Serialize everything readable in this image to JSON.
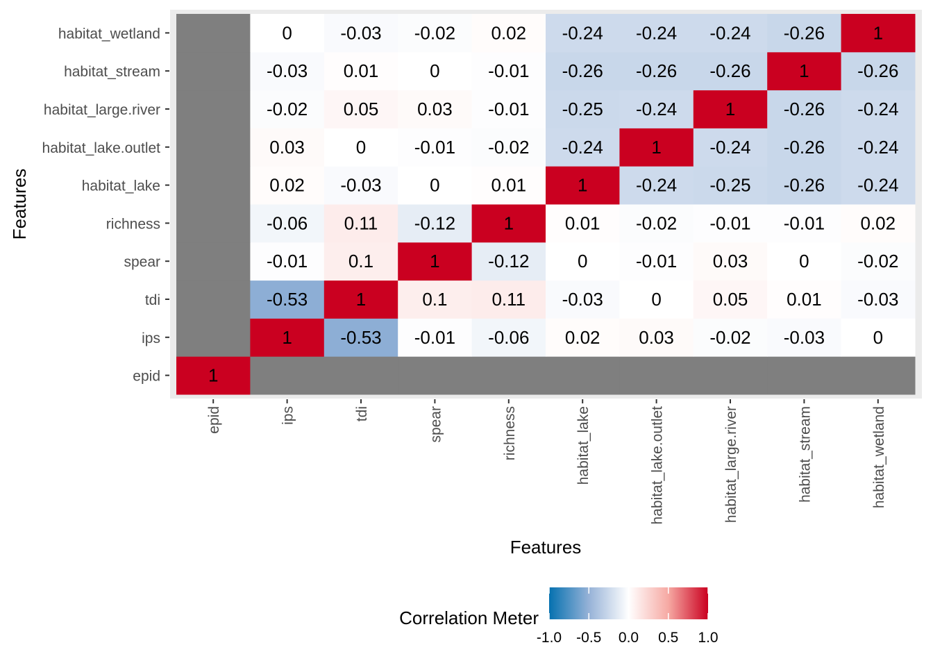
{
  "chart_data": {
    "type": "heatmap",
    "title": "",
    "xlabel": "Features",
    "ylabel": "Features",
    "x_categories": [
      "epid",
      "ips",
      "tdi",
      "spear",
      "richness",
      "habitat_lake",
      "habitat_lake.outlet",
      "habitat_large.river",
      "habitat_stream",
      "habitat_wetland"
    ],
    "y_categories": [
      "epid",
      "ips",
      "tdi",
      "spear",
      "richness",
      "habitat_lake",
      "habitat_lake.outlet",
      "habitat_large.river",
      "habitat_stream",
      "habitat_wetland"
    ],
    "values": [
      [
        1,
        null,
        null,
        null,
        null,
        null,
        null,
        null,
        null,
        null
      ],
      [
        null,
        1,
        -0.53,
        -0.01,
        -0.06,
        0.02,
        0.03,
        -0.02,
        -0.03,
        0
      ],
      [
        null,
        -0.53,
        1,
        0.1,
        0.11,
        -0.03,
        0,
        0.05,
        0.01,
        -0.03
      ],
      [
        null,
        -0.01,
        0.1,
        1,
        -0.12,
        0,
        -0.01,
        0.03,
        0,
        -0.02
      ],
      [
        null,
        -0.06,
        0.11,
        -0.12,
        1,
        0.01,
        -0.02,
        -0.01,
        -0.01,
        0.02
      ],
      [
        null,
        0.02,
        -0.03,
        0,
        0.01,
        1,
        -0.24,
        -0.25,
        -0.26,
        -0.24
      ],
      [
        null,
        0.03,
        0,
        -0.01,
        -0.02,
        -0.24,
        1,
        -0.24,
        -0.26,
        -0.24
      ],
      [
        null,
        -0.02,
        0.05,
        0.03,
        -0.01,
        -0.25,
        -0.24,
        1,
        -0.26,
        -0.24
      ],
      [
        null,
        -0.03,
        0.01,
        0,
        -0.01,
        -0.26,
        -0.26,
        -0.26,
        1,
        -0.26
      ],
      [
        null,
        0,
        -0.03,
        -0.02,
        0.02,
        -0.24,
        -0.24,
        -0.24,
        -0.26,
        1
      ]
    ],
    "na_color": "#7F7F7F",
    "legend": {
      "title": "Correlation Meter",
      "placement": "bottom",
      "limits": [
        -1,
        1
      ],
      "ticks": [
        "-1.0",
        "-0.5",
        "0.0",
        "0.5",
        "1.0"
      ],
      "tick_values": [
        -1,
        -0.5,
        0,
        0.5,
        1
      ],
      "colors": [
        "#0571B0",
        "#96B2D7",
        "#FFFFFF",
        "#F6A9A3",
        "#CA0020"
      ]
    },
    "panel_background": "#EBEBEB",
    "grid": true
  }
}
